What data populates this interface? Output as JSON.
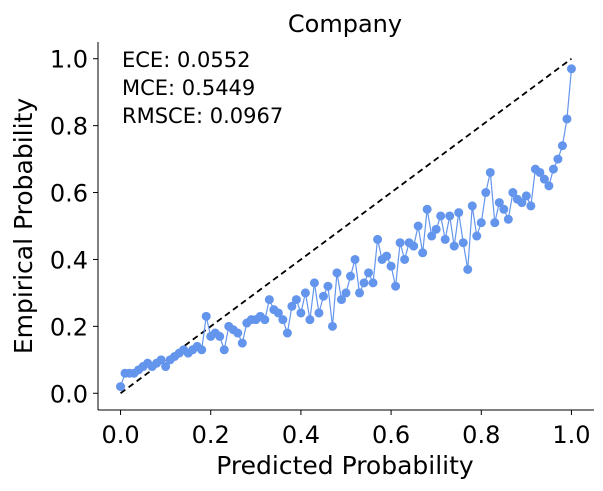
{
  "chart_data": {
    "type": "line",
    "title": "Company",
    "xlabel": "Predicted Probability",
    "ylabel": "Empirical Probability",
    "annotations": [
      "ECE: 0.0552",
      "MCE: 0.5449",
      "RMSCE: 0.0967"
    ],
    "reference_line": {
      "x": [
        0,
        1
      ],
      "y": [
        0,
        1
      ],
      "color": "#000000"
    },
    "x": [
      0.0,
      0.01,
      0.02,
      0.03,
      0.04,
      0.05,
      0.06,
      0.07,
      0.08,
      0.09,
      0.1,
      0.11,
      0.12,
      0.13,
      0.14,
      0.15,
      0.16,
      0.17,
      0.18,
      0.19,
      0.2,
      0.21,
      0.22,
      0.23,
      0.24,
      0.25,
      0.26,
      0.27,
      0.28,
      0.29,
      0.3,
      0.31,
      0.32,
      0.33,
      0.34,
      0.35,
      0.36,
      0.37,
      0.38,
      0.39,
      0.4,
      0.41,
      0.42,
      0.43,
      0.44,
      0.45,
      0.46,
      0.47,
      0.48,
      0.49,
      0.5,
      0.51,
      0.52,
      0.53,
      0.54,
      0.55,
      0.56,
      0.57,
      0.58,
      0.59,
      0.6,
      0.61,
      0.62,
      0.63,
      0.64,
      0.65,
      0.66,
      0.67,
      0.68,
      0.69,
      0.7,
      0.71,
      0.72,
      0.73,
      0.74,
      0.75,
      0.76,
      0.77,
      0.78,
      0.79,
      0.8,
      0.81,
      0.82,
      0.83,
      0.84,
      0.85,
      0.86,
      0.87,
      0.88,
      0.89,
      0.9,
      0.91,
      0.92,
      0.93,
      0.94,
      0.95,
      0.96,
      0.97,
      0.98,
      0.99,
      1.0
    ],
    "series": [
      {
        "color": "#6495ed",
        "values": [
          0.02,
          0.06,
          0.06,
          0.06,
          0.07,
          0.08,
          0.09,
          0.08,
          0.09,
          0.1,
          0.08,
          0.1,
          0.11,
          0.12,
          0.13,
          0.12,
          0.13,
          0.14,
          0.13,
          0.23,
          0.17,
          0.18,
          0.17,
          0.13,
          0.2,
          0.19,
          0.18,
          0.15,
          0.21,
          0.22,
          0.22,
          0.23,
          0.22,
          0.28,
          0.25,
          0.24,
          0.22,
          0.18,
          0.26,
          0.28,
          0.24,
          0.3,
          0.22,
          0.33,
          0.24,
          0.29,
          0.32,
          0.2,
          0.36,
          0.28,
          0.3,
          0.35,
          0.4,
          0.3,
          0.33,
          0.36,
          0.33,
          0.46,
          0.4,
          0.41,
          0.38,
          0.32,
          0.45,
          0.4,
          0.45,
          0.44,
          0.5,
          0.42,
          0.55,
          0.47,
          0.49,
          0.53,
          0.46,
          0.53,
          0.44,
          0.54,
          0.45,
          0.37,
          0.56,
          0.47,
          0.51,
          0.6,
          0.66,
          0.51,
          0.57,
          0.55,
          0.52,
          0.6,
          0.58,
          0.57,
          0.59,
          0.56,
          0.67,
          0.66,
          0.64,
          0.62,
          0.67,
          0.7,
          0.74,
          0.82,
          0.97
        ]
      }
    ],
    "xlim": [
      -0.05,
      1.05
    ],
    "ylim": [
      -0.05,
      1.05
    ],
    "xticks": [
      {
        "value": 0,
        "label": "0.0"
      },
      0.2,
      0.4,
      0.6,
      0.8,
      {
        "value": 1,
        "label": "1.0"
      }
    ],
    "yticks": [
      {
        "value": 0,
        "label": "0.0"
      },
      0.2,
      0.4,
      0.6,
      0.8,
      {
        "value": 1,
        "label": "1.0"
      }
    ],
    "grid": false
  }
}
